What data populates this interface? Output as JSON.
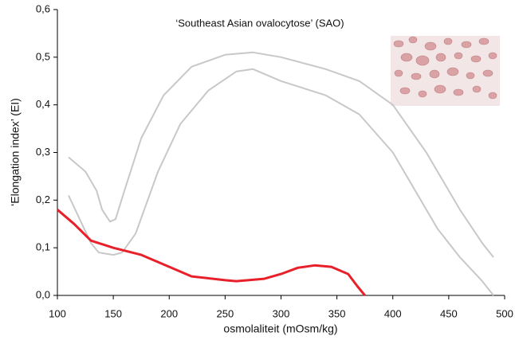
{
  "chart_data": {
    "type": "line",
    "title": "‘Southeast Asian ovalocytose’ (SAO)",
    "x_label": "osmolaliteit (mOsm/kg)",
    "y_label": "‘Elongation index’ (EI)",
    "xlim": [
      100,
      500
    ],
    "xticks": [
      100,
      150,
      200,
      250,
      300,
      350,
      400,
      450,
      500
    ],
    "ylim": [
      0,
      0.6
    ],
    "yticks": [
      {
        "value": 0,
        "label": "0,0"
      },
      {
        "value": 0.1,
        "label": "0,1"
      },
      {
        "value": 0.2,
        "label": "0,2"
      },
      {
        "value": 0.3,
        "label": "0,3"
      },
      {
        "value": 0.4,
        "label": "0,4"
      },
      {
        "value": 0.5,
        "label": "0,5"
      },
      {
        "value": 0.6,
        "label": "0,6"
      }
    ],
    "series": [
      {
        "color": "#c8c8c8",
        "x": [
          110,
          125,
          135,
          140,
          147,
          152,
          160,
          175,
          195,
          220,
          250,
          275,
          300,
          340,
          370,
          400,
          430,
          460,
          480,
          490
        ],
        "values": [
          0.29,
          0.26,
          0.22,
          0.18,
          0.155,
          0.16,
          0.22,
          0.33,
          0.42,
          0.48,
          0.505,
          0.51,
          0.5,
          0.475,
          0.45,
          0.4,
          0.3,
          0.18,
          0.11,
          0.08
        ]
      },
      {
        "color": "#c8c8c8",
        "x": [
          110,
          120,
          130,
          137,
          150,
          158,
          170,
          190,
          210,
          235,
          260,
          275,
          300,
          340,
          370,
          400,
          420,
          440,
          460,
          480,
          490
        ],
        "values": [
          0.21,
          0.16,
          0.11,
          0.09,
          0.085,
          0.09,
          0.13,
          0.26,
          0.36,
          0.43,
          0.47,
          0.475,
          0.45,
          0.42,
          0.38,
          0.3,
          0.22,
          0.14,
          0.08,
          0.03,
          0.0
        ]
      },
      {
        "color": "#e8202a",
        "x": [
          100,
          115,
          130,
          150,
          175,
          200,
          220,
          250,
          260,
          285,
          300,
          315,
          330,
          345,
          360,
          368,
          375
        ],
        "values": [
          0.18,
          0.15,
          0.115,
          0.1,
          0.085,
          0.06,
          0.04,
          0.032,
          0.03,
          0.035,
          0.045,
          0.058,
          0.063,
          0.06,
          0.045,
          0.02,
          0.0
        ]
      }
    ]
  }
}
